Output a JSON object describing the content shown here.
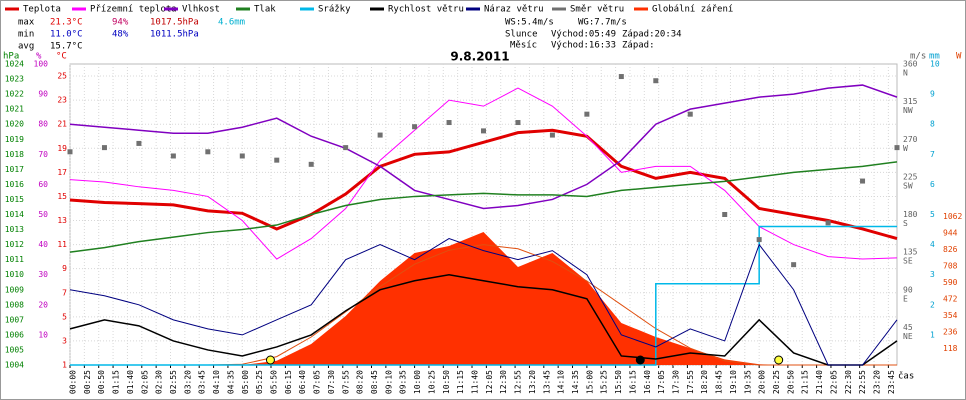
{
  "chart_data": {
    "type": "line",
    "title": "9.8.2011",
    "xlabel": "čas",
    "xlim": [
      0,
      1440
    ],
    "xticks": [
      {
        "value": 0,
        "label": "00:00"
      },
      {
        "value": 25,
        "label": "00:25"
      },
      {
        "value": 50,
        "label": "00:50"
      },
      {
        "value": 75,
        "label": "01:15"
      },
      {
        "value": 100,
        "label": "01:40"
      },
      {
        "value": 125,
        "label": "02:05"
      },
      {
        "value": 150,
        "label": "02:30"
      },
      {
        "value": 175,
        "label": "02:55"
      },
      {
        "value": 200,
        "label": "03:20"
      },
      {
        "value": 225,
        "label": "03:45"
      },
      {
        "value": 250,
        "label": "04:10"
      },
      {
        "value": 275,
        "label": "04:35"
      },
      {
        "value": 300,
        "label": "05:00"
      },
      {
        "value": 325,
        "label": "05:25"
      },
      {
        "value": 350,
        "label": "05:50"
      },
      {
        "value": 375,
        "label": "06:15"
      },
      {
        "value": 400,
        "label": "06:40"
      },
      {
        "value": 425,
        "label": "07:05"
      },
      {
        "value": 450,
        "label": "07:30"
      },
      {
        "value": 475,
        "label": "07:55"
      },
      {
        "value": 500,
        "label": "08:20"
      },
      {
        "value": 525,
        "label": "08:45"
      },
      {
        "value": 550,
        "label": "09:10"
      },
      {
        "value": 575,
        "label": "09:35"
      },
      {
        "value": 600,
        "label": "10:00"
      },
      {
        "value": 625,
        "label": "10:25"
      },
      {
        "value": 650,
        "label": "10:50"
      },
      {
        "value": 675,
        "label": "11:15"
      },
      {
        "value": 700,
        "label": "11:40"
      },
      {
        "value": 725,
        "label": "12:05"
      },
      {
        "value": 750,
        "label": "12:30"
      },
      {
        "value": 775,
        "label": "12:55"
      },
      {
        "value": 800,
        "label": "13:20"
      },
      {
        "value": 825,
        "label": "13:45"
      },
      {
        "value": 850,
        "label": "14:10"
      },
      {
        "value": 875,
        "label": "14:35"
      },
      {
        "value": 900,
        "label": "15:00"
      },
      {
        "value": 925,
        "label": "15:25"
      },
      {
        "value": 950,
        "label": "15:50"
      },
      {
        "value": 975,
        "label": "16:15"
      },
      {
        "value": 1000,
        "label": "16:40"
      },
      {
        "value": 1025,
        "label": "17:05"
      },
      {
        "value": 1050,
        "label": "17:30"
      },
      {
        "value": 1075,
        "label": "17:55"
      },
      {
        "value": 1100,
        "label": "18:20"
      },
      {
        "value": 1125,
        "label": "18:45"
      },
      {
        "value": 1150,
        "label": "19:10"
      },
      {
        "value": 1175,
        "label": "19:35"
      },
      {
        "value": 1200,
        "label": "20:00"
      },
      {
        "value": 1225,
        "label": "20:25"
      },
      {
        "value": 1250,
        "label": "20:50"
      },
      {
        "value": 1275,
        "label": "21:15"
      },
      {
        "value": 1300,
        "label": "21:40"
      },
      {
        "value": 1325,
        "label": "22:05"
      },
      {
        "value": 1350,
        "label": "22:30"
      },
      {
        "value": 1375,
        "label": "22:55"
      },
      {
        "value": 1400,
        "label": "23:20"
      },
      {
        "value": 1425,
        "label": "23:45"
      }
    ],
    "x": [
      0,
      60,
      120,
      180,
      240,
      300,
      360,
      420,
      480,
      540,
      600,
      660,
      720,
      780,
      840,
      900,
      960,
      1020,
      1080,
      1140,
      1200,
      1260,
      1320,
      1380,
      1440
    ],
    "grid": true,
    "axes": {
      "hpa": {
        "label": "hPa",
        "color": "#008000",
        "lim": [
          1004,
          1024
        ],
        "ticks": [
          1004,
          1005,
          1006,
          1007,
          1008,
          1009,
          1010,
          1011,
          1012,
          1013,
          1014,
          1015,
          1016,
          1017,
          1018,
          1019,
          1020,
          1021,
          1022,
          1023,
          1024
        ]
      },
      "pct": {
        "label": "%",
        "color": "#c000c0",
        "lim": [
          0,
          100
        ],
        "ticks": [
          10,
          20,
          30,
          40,
          50,
          60,
          70,
          80,
          90,
          100
        ]
      },
      "temp": {
        "label": "°C",
        "color": "#e00000",
        "lim": [
          1,
          26
        ],
        "ticks": [
          1,
          3,
          5,
          7,
          9,
          11,
          13,
          15,
          17,
          19,
          21,
          23,
          25
        ]
      },
      "dir": {
        "label": "m/s",
        "color": "#606060",
        "lim": [
          0,
          360
        ],
        "ticks": [
          45,
          90,
          135,
          180,
          225,
          270,
          315,
          360
        ],
        "tick_names": [
          "NE",
          "E",
          "SE",
          "S",
          "SW",
          "W",
          "NW",
          "N"
        ]
      },
      "mm": {
        "label": "mm",
        "color": "#00a0d0",
        "lim": [
          0,
          10
        ],
        "ticks": [
          1,
          2,
          3,
          4,
          5,
          6,
          7,
          8,
          9,
          10
        ]
      },
      "rad": {
        "label": "W",
        "color": "#e04000",
        "lim": [
          0,
          2150
        ],
        "ticks": [
          118,
          236,
          354,
          472,
          590,
          708,
          826,
          944,
          1062
        ]
      }
    },
    "series": [
      {
        "name": "Globální záření",
        "color": "#ff3000",
        "axis": "rad",
        "kind": "area",
        "values": [
          0,
          0,
          0,
          0,
          0,
          0,
          30,
          150,
          350,
          600,
          800,
          850,
          950,
          700,
          800,
          600,
          300,
          200,
          120,
          40,
          5,
          0,
          0,
          0,
          0
        ],
        "clear_sky": [
          0,
          0,
          0,
          0,
          0,
          5,
          60,
          200,
          380,
          560,
          720,
          820,
          860,
          830,
          740,
          600,
          430,
          260,
          120,
          30,
          0,
          0,
          0,
          0,
          0
        ]
      },
      {
        "name": "Teplota",
        "color": "#e00000",
        "axis": "temp",
        "kind": "line",
        "width": 3,
        "values": [
          14.7,
          14.5,
          14.4,
          14.3,
          13.8,
          13.6,
          12.3,
          13.5,
          15.2,
          17.5,
          18.5,
          18.7,
          19.5,
          20.3,
          20.5,
          20.0,
          17.5,
          16.5,
          17.0,
          16.5,
          14.0,
          13.5,
          13.0,
          12.3,
          11.5
        ]
      },
      {
        "name": "Přízemní teplota",
        "color": "#ff00ff",
        "axis": "temp",
        "kind": "line",
        "width": 1,
        "values": [
          16.4,
          16.2,
          15.8,
          15.5,
          15.0,
          13.0,
          9.8,
          11.5,
          14.0,
          18.0,
          20.5,
          23.0,
          22.5,
          24.0,
          22.5,
          20.0,
          17.0,
          17.5,
          17.5,
          15.5,
          12.5,
          11.0,
          10.0,
          9.8,
          9.9
        ]
      },
      {
        "name": "Vlhkost",
        "color": "#8000c0",
        "axis": "pct",
        "kind": "line",
        "width": 1.5,
        "values": [
          80,
          79,
          78,
          77,
          77,
          79,
          82,
          76,
          72,
          66,
          58,
          55,
          52,
          53,
          55,
          60,
          68,
          80,
          85,
          87,
          89,
          90,
          92,
          93,
          89
        ]
      },
      {
        "name": "Tlak",
        "color": "#208020",
        "axis": "hpa",
        "kind": "line",
        "width": 1.5,
        "values": [
          1011.5,
          1011.8,
          1012.2,
          1012.5,
          1012.8,
          1013,
          1013.3,
          1014,
          1014.6,
          1015,
          1015.2,
          1015.3,
          1015.4,
          1015.3,
          1015.3,
          1015.2,
          1015.6,
          1015.8,
          1016,
          1016.2,
          1016.5,
          1016.8,
          1017,
          1017.2,
          1017.5
        ]
      },
      {
        "name": "Srážky",
        "color": "#00b8e8",
        "axis": "mm",
        "kind": "step",
        "width": 1.5,
        "values": [
          0,
          0,
          0,
          0,
          0,
          0,
          0,
          0,
          0,
          0,
          0,
          0,
          0,
          0,
          0,
          0,
          0,
          2.7,
          2.7,
          2.7,
          4.6,
          4.6,
          4.6,
          4.6,
          4.6
        ]
      },
      {
        "name": "Rychlost větru",
        "color": "#000000",
        "axis": "mm",
        "kind": "line",
        "width": 1.5,
        "values": [
          1.2,
          1.5,
          1.3,
          0.8,
          0.5,
          0.3,
          0.6,
          1.0,
          1.8,
          2.5,
          2.8,
          3.0,
          2.8,
          2.6,
          2.5,
          2.2,
          0.3,
          0.2,
          0.4,
          0.3,
          1.5,
          0.4,
          0,
          0,
          0.8
        ]
      },
      {
        "name": "Náraz větru",
        "color": "#000080",
        "axis": "mm",
        "kind": "line",
        "width": 1,
        "values": [
          2.5,
          2.3,
          2.0,
          1.5,
          1.2,
          1.0,
          1.5,
          2.0,
          3.5,
          4.0,
          3.5,
          4.2,
          3.8,
          3.5,
          3.8,
          3.0,
          1.0,
          0.6,
          1.2,
          0.8,
          4.0,
          2.5,
          0,
          0,
          1.5
        ]
      },
      {
        "name": "Směr větru",
        "color": "#707070",
        "axis": "dir",
        "kind": "points",
        "values": [
          255,
          260,
          265,
          250,
          255,
          250,
          245,
          240,
          260,
          275,
          285,
          290,
          280,
          290,
          275,
          300,
          345,
          340,
          300,
          180,
          150,
          120,
          170,
          220,
          260
        ]
      }
    ],
    "legend_order": [
      1,
      2,
      3,
      4,
      5,
      6,
      7,
      8,
      0
    ],
    "markers": [
      {
        "x": 349,
        "color": "#ffff40"
      },
      {
        "x": 1234,
        "color": "#ffff40"
      },
      {
        "x": 993,
        "color": "#000000"
      }
    ],
    "stats": [
      {
        "label": "max",
        "items": [
          {
            "text": "21.3°C",
            "color": "#e00000"
          },
          {
            "text": "94%",
            "color": "#c00060"
          },
          {
            "text": "1017.5hPa",
            "color": "#c00000"
          },
          {
            "text": "4.6mm",
            "color": "#00b0d0"
          }
        ]
      },
      {
        "label": "min",
        "items": [
          {
            "text": "11.0°C",
            "color": "#0000c0"
          },
          {
            "text": "48%",
            "color": "#0000c0"
          },
          {
            "text": "1011.5hPa",
            "color": "#0000c0"
          }
        ]
      },
      {
        "label": "avg",
        "items": [
          {
            "text": "15.7°C",
            "color": "#000000"
          }
        ]
      }
    ],
    "wind_info": [
      "WS:5.4m/s",
      "WG:7.7m/s"
    ],
    "sun": {
      "label": "Slunce",
      "rise": "Východ:05:49",
      "set": "Západ:20:34"
    },
    "moon": {
      "label": "Měsíc",
      "rise": "Východ:16:33",
      "set": "Západ:"
    }
  }
}
